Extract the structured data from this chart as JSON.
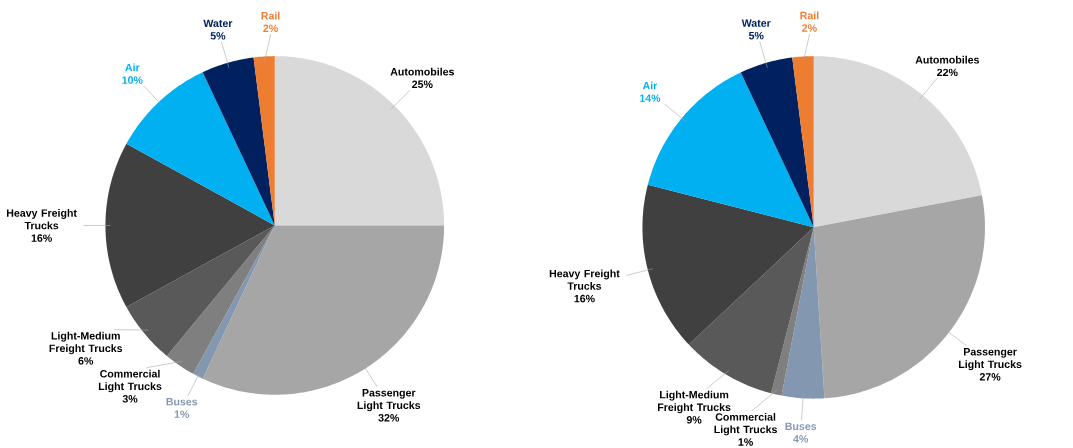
{
  "chart_data": [
    {
      "type": "pie",
      "categories": [
        "Automobiles",
        "Passenger Light Trucks",
        "Buses",
        "Commercial Light Trucks",
        "Light-Medium Freight Trucks",
        "Heavy Freight Trucks",
        "Air",
        "Water",
        "Rail"
      ],
      "values": [
        25,
        32,
        1,
        3,
        6,
        16,
        10,
        5,
        2
      ],
      "value_labels": [
        "25%",
        "32%",
        "1%",
        "3%",
        "6%",
        "16%",
        "10%",
        "5%",
        "2%"
      ],
      "colors": [
        "#d9d9d9",
        "#a6a6a6",
        "#8497b0",
        "#7f7f7f",
        "#595959",
        "#404040",
        "#00b0f0",
        "#002060",
        "#ed7d31"
      ]
    },
    {
      "type": "pie",
      "categories": [
        "Automobiles",
        "Passenger Light Trucks",
        "Buses",
        "Commercial Light Trucks",
        "Light-Medium Freight Trucks",
        "Heavy Freight Trucks",
        "Air",
        "Water",
        "Rail"
      ],
      "values": [
        22,
        27,
        4,
        1,
        9,
        16,
        14,
        5,
        2
      ],
      "value_labels": [
        "22%",
        "27%",
        "4%",
        "1%",
        "9%",
        "16%",
        "14%",
        "5%",
        "2%"
      ],
      "colors": [
        "#d9d9d9",
        "#a6a6a6",
        "#8497b0",
        "#7f7f7f",
        "#595959",
        "#404040",
        "#00b0f0",
        "#002060",
        "#ed7d31"
      ]
    }
  ]
}
